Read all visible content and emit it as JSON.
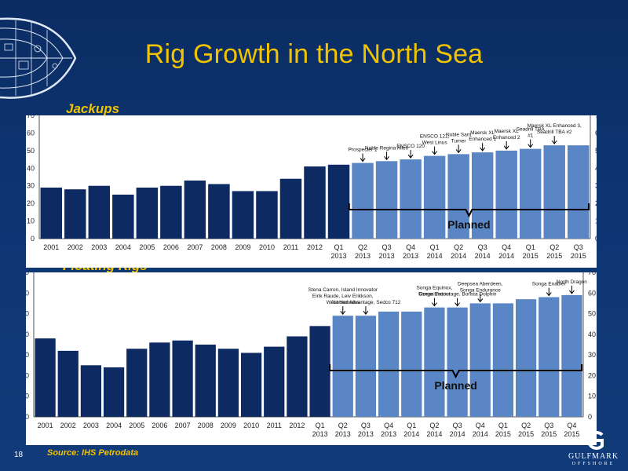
{
  "slide": {
    "title": "Rig Growth in the North Sea",
    "source": "Source: IHS Petrodata",
    "page_number": "18",
    "logo_text": "GULFMARK",
    "logo_subtext": "OFFSHORE",
    "colors": {
      "title": "#f2c400",
      "historic_bar": "#0d2a63",
      "planned_bar": "#5a86c5",
      "background": "#0e3673"
    }
  },
  "chart_data": [
    {
      "type": "bar",
      "title": "Jackups",
      "categories": [
        "2001",
        "2002",
        "2003",
        "2004",
        "2005",
        "2006",
        "2007",
        "2008",
        "2009",
        "2010",
        "2011",
        "2012",
        "Q1\n2013",
        "Q2\n2013",
        "Q3\n2013",
        "Q4\n2013",
        "Q1\n2014",
        "Q2\n2014",
        "Q3\n2014",
        "Q4\n2014",
        "Q1\n2015",
        "Q2\n2015",
        "Q3\n2015"
      ],
      "values": [
        29,
        28,
        30,
        25,
        29,
        30,
        33,
        31,
        27,
        27,
        34,
        41,
        42,
        43,
        44,
        45,
        47,
        48,
        49,
        50,
        51,
        53,
        53
      ],
      "planned_start_index": 13,
      "planned_label": "Planned",
      "ylim": [
        0,
        70
      ],
      "yticks": [
        0,
        10,
        20,
        30,
        40,
        50,
        60,
        70
      ],
      "grid": false,
      "annotations": [
        {
          "index": 13,
          "text": "Prospecter 1"
        },
        {
          "index": 14,
          "text": "Noble Regina Allen"
        },
        {
          "index": 15,
          "text": "ENSCO 120"
        },
        {
          "index": 16,
          "text": "ENSCO 121,\nWest Linus"
        },
        {
          "index": 17,
          "text": "Noble Sam\nTurner"
        },
        {
          "index": 18,
          "text": "Maersk XL\nEnhanced 1"
        },
        {
          "index": 19,
          "text": "Maersk XL\nEnhanced 2"
        },
        {
          "index": 20,
          "text": "Seadrill TBA\n#1"
        },
        {
          "index": 21,
          "text": "Maersk XL Enhanced 3,\nSeadrill TBA #2"
        }
      ]
    },
    {
      "type": "bar",
      "title": "Floating Rigs",
      "categories": [
        "2001",
        "2002",
        "2003",
        "2004",
        "2005",
        "2006",
        "2007",
        "2008",
        "2009",
        "2010",
        "2011",
        "2012",
        "Q1\n2013",
        "Q2\n2013",
        "Q3\n2013",
        "Q4\n2013",
        "Q1\n2014",
        "Q2\n2014",
        "Q3\n2014",
        "Q4\n2014",
        "Q1\n2015",
        "Q2\n2015",
        "Q3\n2015",
        "Q4\n2015"
      ],
      "values": [
        38,
        32,
        25,
        24,
        33,
        36,
        37,
        35,
        33,
        31,
        34,
        39,
        44,
        49,
        49,
        51,
        51,
        53,
        53,
        55,
        55,
        57,
        58,
        59
      ],
      "planned_start_index": 13,
      "planned_label": "Planned",
      "ylim": [
        0,
        70
      ],
      "yticks": [
        0,
        10,
        20,
        30,
        40,
        50,
        60,
        70
      ],
      "grid": false,
      "annotations": [
        {
          "index": 13,
          "text": "Stena Carron, Island Innovator\nEirik Raude, Leiv Erikkson,\nWest Hercules"
        },
        {
          "index": 14,
          "text": "Atwood Advantage, Sedco 712"
        },
        {
          "index": 17,
          "text": "Songa Equinox,\nOcean Patriot"
        },
        {
          "index": 18,
          "text": "Songa Encourage, Borista Dolphin"
        },
        {
          "index": 19,
          "text": "Deepsea Aberdeen,\nSonga Endurance"
        },
        {
          "index": 22,
          "text": "Songa Enabler"
        },
        {
          "index": 23,
          "text": "North Dragon"
        }
      ]
    }
  ]
}
